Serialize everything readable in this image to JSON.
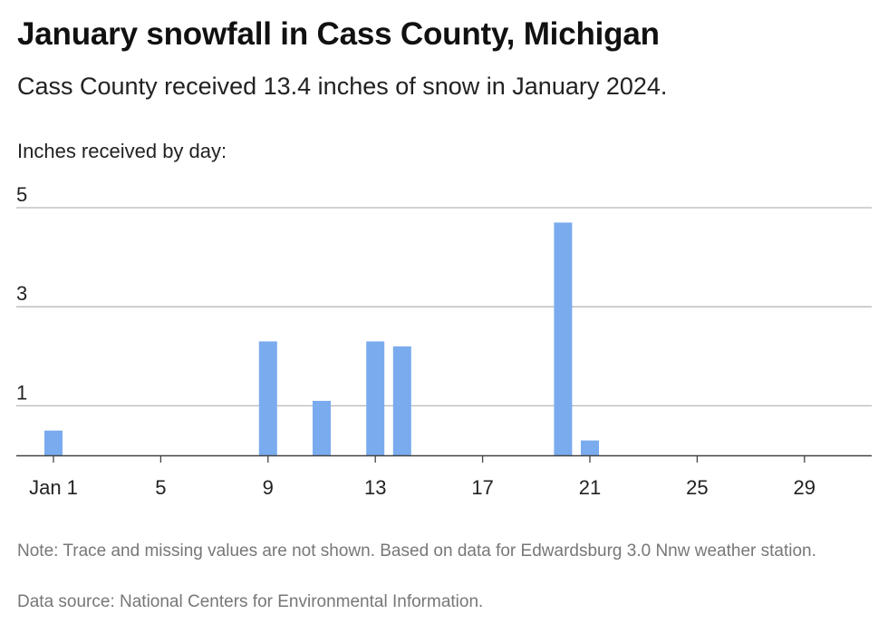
{
  "header": {
    "title": "January snowfall in Cass County, Michigan",
    "subtitle": "Cass County received 13.4 inches of snow in January 2024.",
    "caption": "Inches received by day:"
  },
  "footer": {
    "note": "Note: Trace and missing values are not shown. Based on data for Edwardsburg 3.0 Nnw weather station.",
    "source": "Data source: National Centers for Environmental Information."
  },
  "chart_data": {
    "type": "bar",
    "title": "January snowfall in Cass County, Michigan",
    "ylabel": "Inches received by day:",
    "x": [
      1,
      9,
      11,
      13,
      14,
      20,
      21
    ],
    "values": [
      0.5,
      2.3,
      1.1,
      2.3,
      2.2,
      4.7,
      0.3
    ],
    "xlim": [
      1,
      31
    ],
    "ylim": [
      0,
      5
    ],
    "x_ticks": [
      1,
      5,
      9,
      13,
      17,
      21,
      25,
      29
    ],
    "x_tick_labels": [
      "Jan 1",
      "5",
      "9",
      "13",
      "17",
      "21",
      "25",
      "29"
    ],
    "y_ticks": [
      1,
      3,
      5
    ],
    "y_tick_labels": [
      "1",
      "3",
      "5"
    ],
    "grid": true,
    "bar_color": "#7aabee"
  }
}
